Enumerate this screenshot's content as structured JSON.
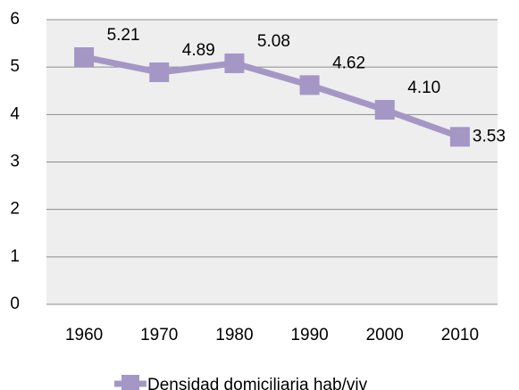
{
  "chart_data": {
    "type": "line",
    "categories": [
      "1960",
      "1970",
      "1980",
      "1990",
      "2000",
      "2010"
    ],
    "series": [
      {
        "name": "Densidad domiciliaria hab/viv",
        "color": "#a497c6",
        "values": [
          5.21,
          4.89,
          5.08,
          4.62,
          4.1,
          3.53
        ],
        "value_labels": [
          "5.21",
          "4.89",
          "5.08",
          "4.62",
          "4.10",
          "3.53"
        ]
      }
    ],
    "ylim": [
      0,
      6
    ],
    "yticks": [
      0,
      1,
      2,
      3,
      4,
      5,
      6
    ],
    "grid": true,
    "legend": "bottom"
  }
}
